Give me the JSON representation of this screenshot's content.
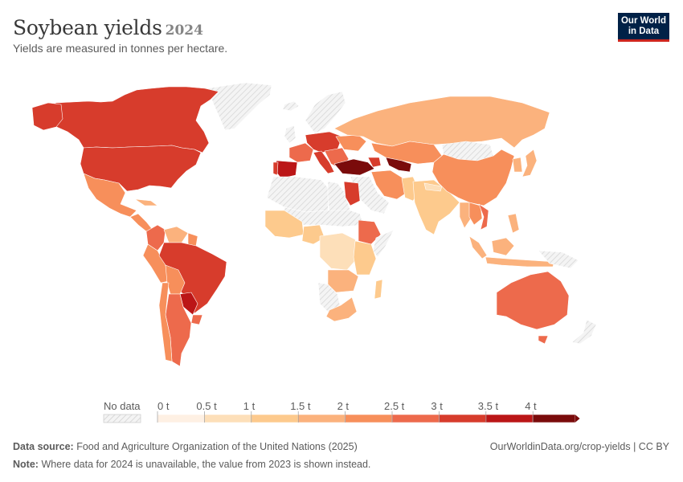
{
  "header": {
    "title": "Soybean yields",
    "year": "2024",
    "subtitle": "Yields are measured in tonnes per hectare."
  },
  "logo": {
    "line1": "Our World",
    "line2": "in Data"
  },
  "legend": {
    "no_data_label": "No data",
    "ticks": [
      "0 t",
      "0.5 t",
      "1 t",
      "1.5 t",
      "2 t",
      "2.5 t",
      "3 t",
      "3.5 t",
      "4 t"
    ],
    "colors": [
      "#fef0e3",
      "#fddfb9",
      "#fdca8d",
      "#fbb27d",
      "#f78f5b",
      "#ed6a4c",
      "#d73c2c",
      "#bb1617",
      "#7a0b0b"
    ]
  },
  "map_data": {
    "metric": "Soybean yield",
    "unit": "tonnes per hectare",
    "regions": [
      {
        "name": "United States",
        "bin": 6
      },
      {
        "name": "Canada",
        "bin": 6
      },
      {
        "name": "Mexico",
        "bin": 4
      },
      {
        "name": "Brazil",
        "bin": 6
      },
      {
        "name": "Argentina",
        "bin": 5
      },
      {
        "name": "Paraguay",
        "bin": 7
      },
      {
        "name": "Uruguay",
        "bin": 5
      },
      {
        "name": "Bolivia",
        "bin": 4
      },
      {
        "name": "Peru",
        "bin": 4
      },
      {
        "name": "Colombia",
        "bin": 5
      },
      {
        "name": "Venezuela",
        "bin": 3
      },
      {
        "name": "Chile",
        "bin": 4
      },
      {
        "name": "Russia",
        "bin": 3
      },
      {
        "name": "China",
        "bin": 4
      },
      {
        "name": "India",
        "bin": 2
      },
      {
        "name": "Iran",
        "bin": 4
      },
      {
        "name": "Turkey",
        "bin": 8
      },
      {
        "name": "Uzbekistan",
        "bin": 8
      },
      {
        "name": "Egypt",
        "bin": 6
      },
      {
        "name": "Ethiopia",
        "bin": 5
      },
      {
        "name": "Spain",
        "bin": 7
      },
      {
        "name": "Italy",
        "bin": 6
      },
      {
        "name": "France",
        "bin": 5
      },
      {
        "name": "Australia",
        "bin": 5
      },
      {
        "name": "Indonesia",
        "bin": 3
      },
      {
        "name": "Japan",
        "bin": 3
      },
      {
        "name": "South Africa",
        "bin": 3
      },
      {
        "name": "Nigeria",
        "bin": 2
      },
      {
        "name": "Zambia",
        "bin": 3
      },
      {
        "name": "Vietnam",
        "bin": 5
      }
    ]
  },
  "footer": {
    "source_label": "Data source:",
    "source_text": "Food and Agriculture Organization of the United Nations (2025)",
    "note_label": "Note:",
    "note_text": "Where data for 2024 is unavailable, the value from 2023 is shown instead.",
    "url_text": "OurWorldinData.org/crop-yields | CC BY"
  }
}
